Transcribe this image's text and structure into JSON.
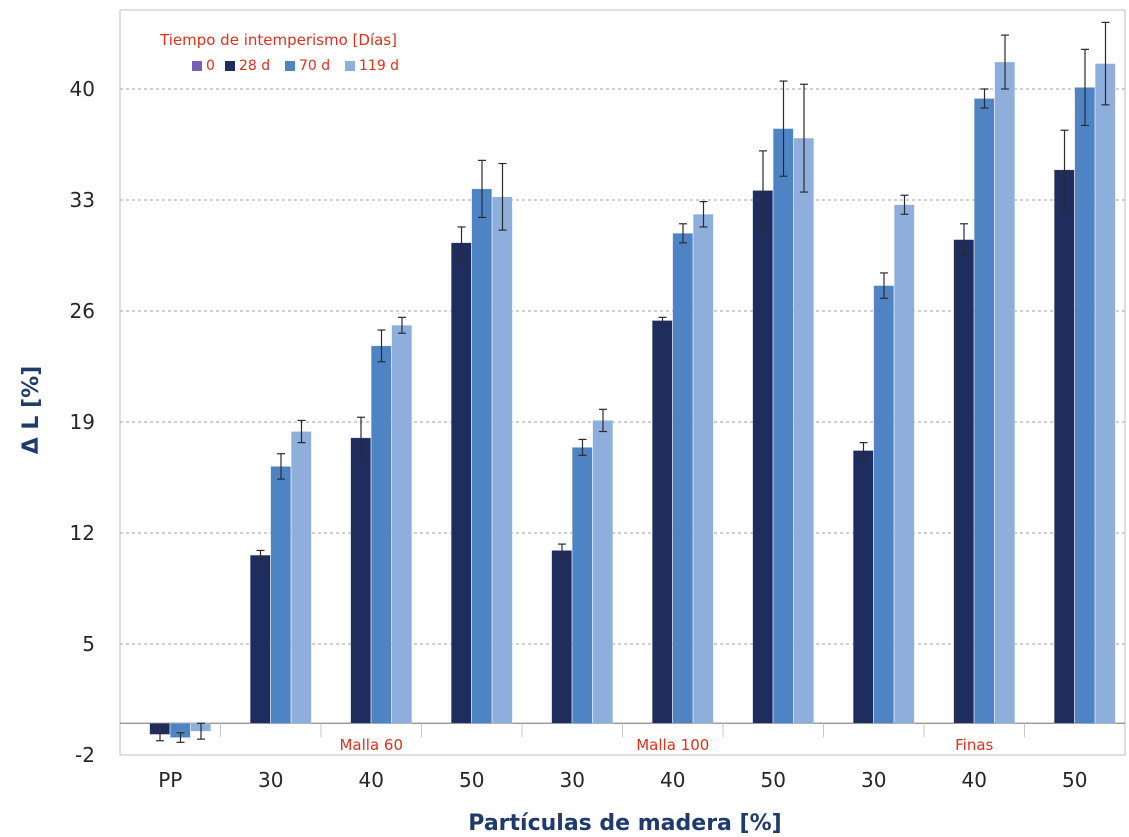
{
  "chart_data": {
    "type": "bar",
    "xlabel": "Partículas de madera [%]",
    "ylabel": "Δ L [%]",
    "ylim": [
      -2,
      44
    ],
    "yticks": [
      -2,
      5,
      12,
      19,
      26,
      33,
      40
    ],
    "grid": true,
    "legend": {
      "title": "Tiempo de intemperismo [Días]",
      "placement": "top-left"
    },
    "categories": [
      "PP",
      "30",
      "40",
      "50",
      "30",
      "40",
      "50",
      "30",
      "40",
      "50"
    ],
    "groups": [
      {
        "label": "Malla 60",
        "start": 1,
        "end": 3
      },
      {
        "label": "Malla 100",
        "start": 4,
        "end": 6
      },
      {
        "label": "Finas",
        "start": 7,
        "end": 9
      }
    ],
    "series": [
      {
        "name": "0",
        "color": "#7b5fb8",
        "values": [
          0,
          0,
          0,
          0,
          0,
          0,
          0,
          0,
          0,
          0
        ],
        "errors": [
          0,
          0,
          0,
          0,
          0,
          0,
          0,
          0,
          0,
          0
        ]
      },
      {
        "name": "28 d",
        "color": "#1f2d5e",
        "values": [
          -0.7,
          10.6,
          18.0,
          30.3,
          10.9,
          25.4,
          33.6,
          17.2,
          30.5,
          34.9
        ],
        "errors": [
          0.4,
          0.3,
          1.3,
          1.0,
          0.4,
          0.2,
          2.5,
          0.5,
          1.0,
          2.5
        ]
      },
      {
        "name": "70 d",
        "color": "#4f84c4",
        "values": [
          -0.9,
          16.2,
          23.8,
          33.7,
          17.4,
          30.9,
          37.5,
          27.6,
          39.4,
          40.1
        ],
        "errors": [
          0.3,
          0.8,
          1.0,
          1.8,
          0.5,
          0.6,
          3.0,
          0.8,
          0.6,
          2.4
        ]
      },
      {
        "name": "119 d",
        "color": "#8eaedb",
        "values": [
          -0.5,
          18.4,
          25.1,
          33.2,
          19.1,
          32.1,
          36.9,
          32.7,
          41.7,
          41.6
        ],
        "errors": [
          0.5,
          0.7,
          0.5,
          2.1,
          0.7,
          0.8,
          3.4,
          0.6,
          1.7,
          2.6
        ]
      }
    ]
  }
}
